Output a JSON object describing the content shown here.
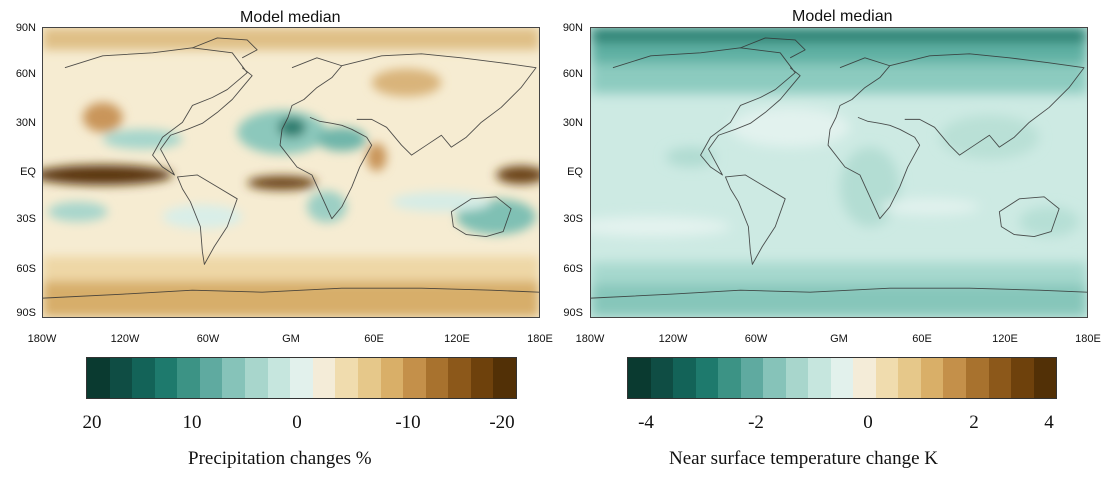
{
  "panels": [
    {
      "title": "Model median",
      "lat_labels": [
        "90N",
        "60N",
        "30N",
        "EQ",
        "30S",
        "60S",
        "90S"
      ],
      "lon_labels": [
        "180W",
        "120W",
        "60W",
        "GM",
        "60E",
        "120E",
        "180E"
      ],
      "colorbar": {
        "colors": [
          "#0a3a30",
          "#0f4d44",
          "#136358",
          "#1e7a6d",
          "#3c9385",
          "#5faaa0",
          "#86c3b9",
          "#a8d6cc",
          "#c6e6de",
          "#e2f1ec",
          "#f4ecd8",
          "#f0dcae",
          "#e6c88a",
          "#d9af68",
          "#c4904a",
          "#a8722e",
          "#8c581a",
          "#6e410c",
          "#523006"
        ],
        "ticks": [
          "20",
          "10",
          "0",
          "-10",
          "-20"
        ],
        "label": "Precipitation changes %"
      }
    },
    {
      "title": "Model median",
      "lat_labels": [
        "90N",
        "60N",
        "30N",
        "EQ",
        "30S",
        "60S",
        "90S"
      ],
      "lon_labels": [
        "180W",
        "120W",
        "60W",
        "GM",
        "60E",
        "120E",
        "180E"
      ],
      "colorbar": {
        "colors": [
          "#0a3a30",
          "#0f4d44",
          "#136358",
          "#1e7a6d",
          "#3c9385",
          "#5faaa0",
          "#86c3b9",
          "#a8d6cc",
          "#c6e6de",
          "#e2f1ec",
          "#f4ecd8",
          "#f0dcae",
          "#e6c88a",
          "#d9af68",
          "#c4904a",
          "#a8722e",
          "#8c581a",
          "#6e410c",
          "#523006"
        ],
        "ticks": [
          "-4",
          "-2",
          "0",
          "2",
          "4"
        ],
        "label": "Near surface temperature change K"
      }
    }
  ]
}
